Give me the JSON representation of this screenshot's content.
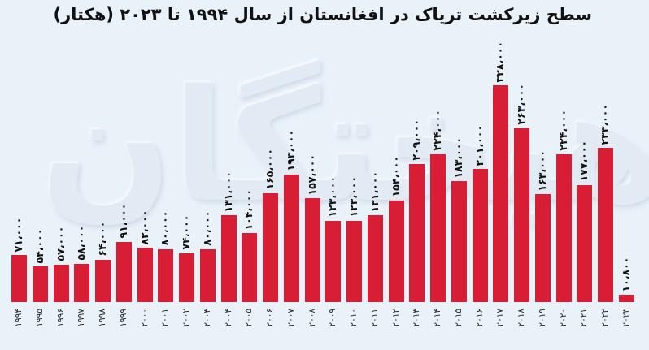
{
  "header": {
    "title": "سطح زیرکشت تریاک در افغانستان از سال ۱۹۹۴ تا ۲۰۲۳ (هکتار)"
  },
  "colors": {
    "bar": "#D81E34",
    "background": "#E9F1F9",
    "text": "#111111"
  },
  "chart_data": {
    "type": "bar",
    "title": "سطح زیرکشت تریاک در افغانستان از سال ۱۹۹۴ تا ۲۰۲۳ (هکتار)",
    "xlabel": "",
    "ylabel": "هکتار",
    "ylim": [
      0,
      340000
    ],
    "grid": false,
    "legend": null,
    "categories": [
      "1994",
      "1995",
      "1996",
      "1997",
      "1998",
      "1999",
      "2000",
      "2001",
      "2002",
      "2003",
      "2004",
      "2005",
      "2006",
      "2007",
      "2008",
      "2009",
      "2010",
      "2011",
      "2012",
      "2013",
      "2014",
      "2015",
      "2016",
      "2017",
      "2018",
      "2019",
      "2020",
      "2021",
      "2022",
      "2023"
    ],
    "category_labels_fa": [
      "۱۹۹۴",
      "۱۹۹۵",
      "۱۹۹۶",
      "۱۹۹۷",
      "۱۹۹۸",
      "۱۹۹۹",
      "۲۰۰۰",
      "۲۰۰۱",
      "۲۰۰۲",
      "۲۰۰۳",
      "۲۰۰۴",
      "۲۰۰۵",
      "۲۰۰۶",
      "۲۰۰۷",
      "۲۰۰۸",
      "۲۰۰۹",
      "۲۰۱۰",
      "۲۰۱۱",
      "۲۰۱۲",
      "۲۰۱۳",
      "۲۰۱۴",
      "۲۰۱۵",
      "۲۰۱۶",
      "۲۰۱۷",
      "۲۰۱۸",
      "۲۰۱۹",
      "۲۰۲۰",
      "۲۰۲۱",
      "۲۰۲۲",
      "۲۰۲۳"
    ],
    "values": [
      71000,
      54000,
      57000,
      58000,
      64000,
      91000,
      82000,
      80000,
      74000,
      80000,
      131000,
      104000,
      165000,
      193000,
      157000,
      123000,
      123000,
      131000,
      154000,
      209000,
      224000,
      183000,
      201000,
      328000,
      263000,
      163000,
      224000,
      177000,
      233000,
      10800
    ],
    "value_labels_fa": [
      "۷۱،۰۰۰",
      "۵۴،۰۰۰",
      "۵۷،۰۰۰",
      "۵۸،۰۰۰",
      "۶۴،۰۰۰",
      "۹۱،۰۰۰",
      "۸۲،۰۰۰",
      "۸۰،۰۰۰",
      "۷۴،۰۰۰",
      "۸۰،۰۰۰",
      "۱۳۱،۰۰۰",
      "۱۰۴،۰۰۰",
      "۱۶۵،۰۰۰",
      "۱۹۳،۰۰۰",
      "۱۵۷،۰۰۰",
      "۱۲۳،۰۰۰",
      "۱۲۳،۰۰۰",
      "۱۳۱،۰۰۰",
      "۱۵۴،۰۰۰",
      "۲۰۹،۰۰۰",
      "۲۲۴،۰۰۰",
      "۱۸۳،۰۰۰",
      "۲۰۱،۰۰۰",
      "۳۲۸،۰۰۰",
      "۲۶۳،۰۰۰",
      "۱۶۳،۰۰۰",
      "۲۲۴،۰۰۰",
      "۱۷۷،۰۰۰",
      "۲۳۳،۰۰۰",
      "۱۰،۸۰۰"
    ]
  }
}
